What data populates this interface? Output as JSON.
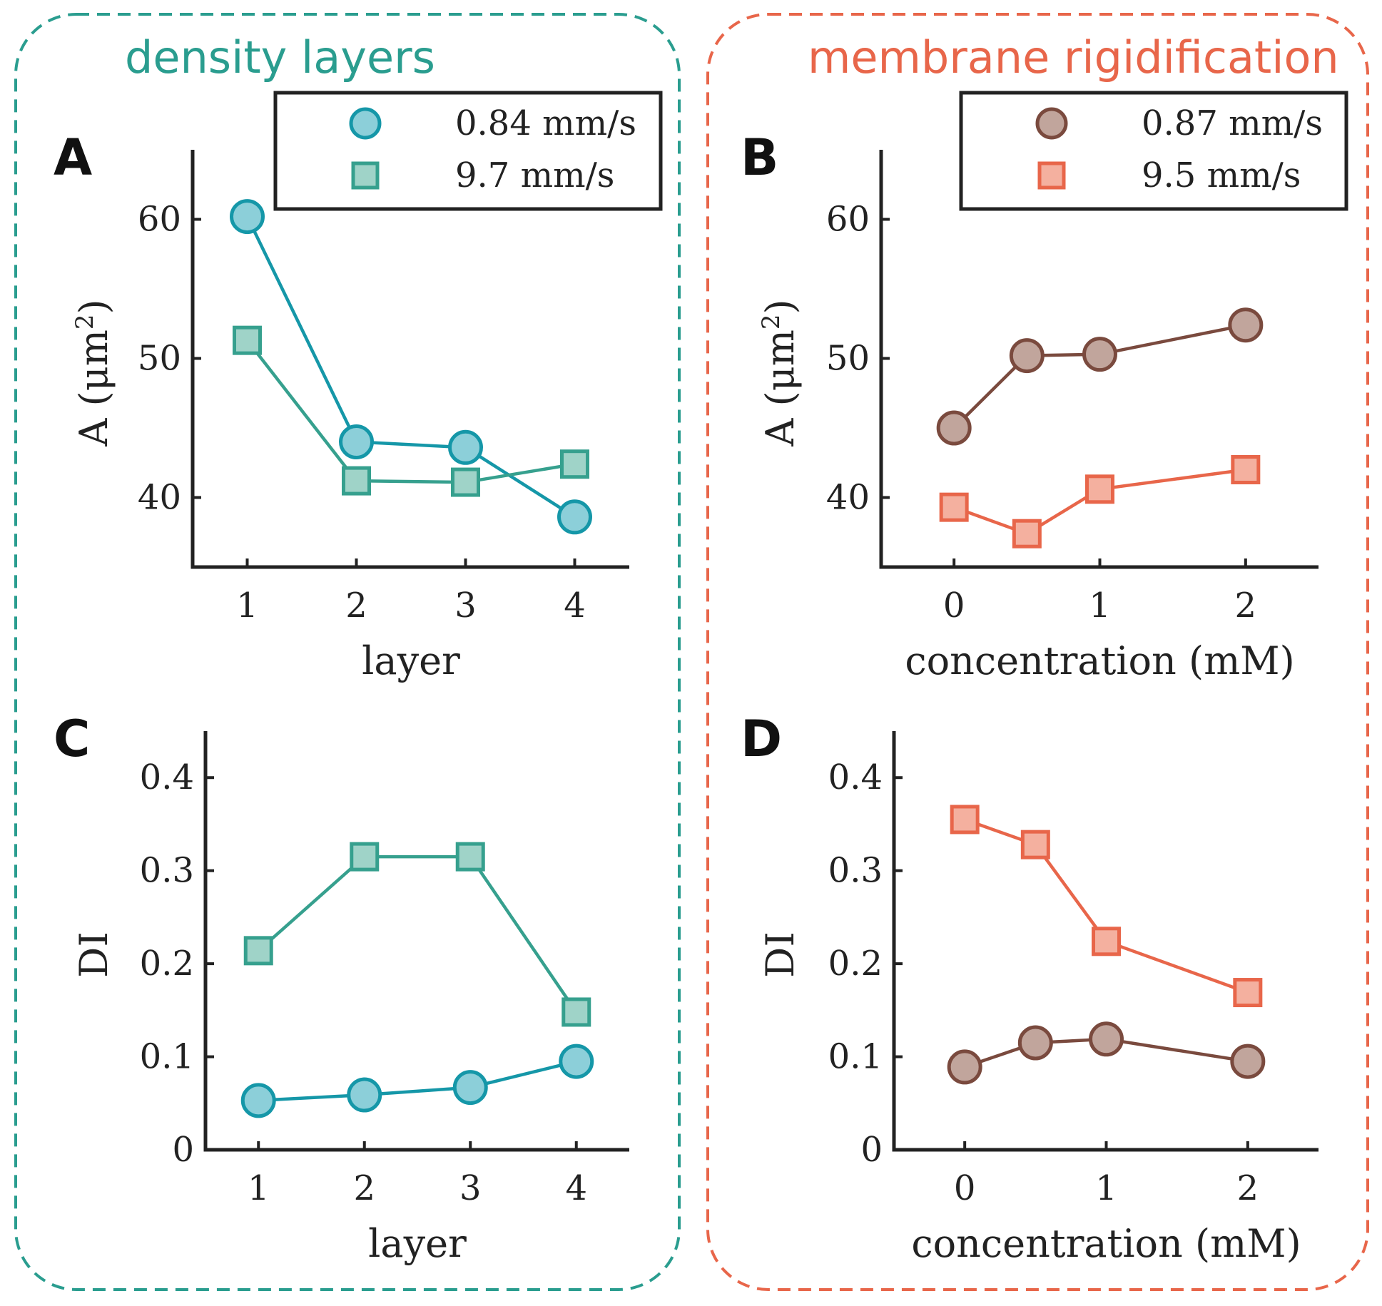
{
  "groups": [
    {
      "title": "density layers",
      "color": "#2a9d8f"
    },
    {
      "title": "membrane rigidification",
      "color": "#e8664a"
    }
  ],
  "legends": [
    {
      "entries": [
        {
          "label": "0.84 mm/s",
          "marker": "circle",
          "fill": "#8ccfd9",
          "stroke": "#1597a8"
        },
        {
          "label": "9.7 mm/s",
          "marker": "square",
          "fill": "#9fd3c8",
          "stroke": "#36a08e"
        }
      ]
    },
    {
      "entries": [
        {
          "label": "0.87 mm/s",
          "marker": "circle",
          "fill": "#c1a59c",
          "stroke": "#7a4a3e"
        },
        {
          "label": "9.5 mm/s",
          "marker": "square",
          "fill": "#f4b09f",
          "stroke": "#e8664a"
        }
      ]
    }
  ],
  "chart_data": [
    {
      "panel": "A",
      "type": "line",
      "xlabel": "layer",
      "ylabel": "A (μm²)",
      "ylabel_main": "A (μm",
      "ylabel_sup": "2",
      "ylabel_end": ")",
      "xlim": [
        0.5,
        4.5
      ],
      "ylim": [
        35,
        65
      ],
      "xticks": [
        1,
        2,
        3,
        4
      ],
      "xtick_labels": [
        "1",
        "2",
        "3",
        "4"
      ],
      "yticks": [
        40,
        50,
        60
      ],
      "ytick_labels": [
        "40",
        "50",
        "60"
      ],
      "series": [
        {
          "name": "0.84 mm/s",
          "marker": "circle",
          "x": [
            1,
            2,
            3,
            4
          ],
          "values": [
            60.2,
            44.0,
            43.6,
            38.6
          ],
          "line": "#1597a8",
          "fill": "#8ccfd9",
          "stroke": "#1597a8"
        },
        {
          "name": "9.7 mm/s",
          "marker": "square",
          "x": [
            1,
            2,
            3,
            4
          ],
          "values": [
            51.3,
            41.2,
            41.1,
            42.4
          ],
          "line": "#36a08e",
          "fill": "#9fd3c8",
          "stroke": "#36a08e"
        }
      ]
    },
    {
      "panel": "B",
      "type": "line",
      "xlabel": "concentration (mM)",
      "ylabel": "A (μm²)",
      "ylabel_main": "A (μm",
      "ylabel_sup": "2",
      "ylabel_end": ")",
      "xlim": [
        -0.5,
        2.5
      ],
      "ylim": [
        35,
        65
      ],
      "xticks": [
        0,
        1,
        2
      ],
      "xtick_labels": [
        "0",
        "1",
        "2"
      ],
      "yticks": [
        40,
        50,
        60
      ],
      "ytick_labels": [
        "40",
        "50",
        "60"
      ],
      "series": [
        {
          "name": "0.87 mm/s",
          "marker": "circle",
          "x": [
            0,
            0.5,
            1,
            2
          ],
          "values": [
            45.0,
            50.2,
            50.3,
            52.4
          ],
          "line": "#7a4a3e",
          "fill": "#c1a59c",
          "stroke": "#7a4a3e"
        },
        {
          "name": "9.5 mm/s",
          "marker": "square",
          "x": [
            0,
            0.5,
            1,
            2
          ],
          "values": [
            39.3,
            37.4,
            40.6,
            42.0
          ],
          "line": "#e8664a",
          "fill": "#f4b09f",
          "stroke": "#e8664a"
        }
      ]
    },
    {
      "panel": "C",
      "type": "line",
      "xlabel": "layer",
      "ylabel": "DI",
      "ylabel_main": "DI",
      "ylabel_sup": "",
      "ylabel_end": "",
      "xlim": [
        0.5,
        4.5
      ],
      "ylim": [
        0,
        0.45
      ],
      "xticks": [
        1,
        2,
        3,
        4
      ],
      "xtick_labels": [
        "1",
        "2",
        "3",
        "4"
      ],
      "yticks": [
        0,
        0.1,
        0.2,
        0.3,
        0.4
      ],
      "ytick_labels": [
        "0",
        "0.1",
        "0.2",
        "0.3",
        "0.4"
      ],
      "series": [
        {
          "name": "9.7 mm/s",
          "marker": "square",
          "x": [
            1,
            2,
            3,
            4
          ],
          "values": [
            0.214,
            0.315,
            0.315,
            0.148
          ],
          "line": "#36a08e",
          "fill": "#9fd3c8",
          "stroke": "#36a08e"
        },
        {
          "name": "0.84 mm/s",
          "marker": "circle",
          "x": [
            1,
            2,
            3,
            4
          ],
          "values": [
            0.053,
            0.059,
            0.067,
            0.095
          ],
          "line": "#1597a8",
          "fill": "#8ccfd9",
          "stroke": "#1597a8"
        }
      ]
    },
    {
      "panel": "D",
      "type": "line",
      "xlabel": "concentration (mM)",
      "ylabel": "DI",
      "ylabel_main": "DI",
      "ylabel_sup": "",
      "ylabel_end": "",
      "xlim": [
        -0.5,
        2.5
      ],
      "ylim": [
        0,
        0.45
      ],
      "xticks": [
        0,
        1,
        2
      ],
      "xtick_labels": [
        "0",
        "1",
        "2"
      ],
      "yticks": [
        0,
        0.1,
        0.2,
        0.3,
        0.4
      ],
      "ytick_labels": [
        "0",
        "0.1",
        "0.2",
        "0.3",
        "0.4"
      ],
      "series": [
        {
          "name": "9.5 mm/s",
          "marker": "square",
          "x": [
            0,
            0.5,
            1,
            2
          ],
          "values": [
            0.355,
            0.328,
            0.224,
            0.169
          ],
          "line": "#e8664a",
          "fill": "#f4b09f",
          "stroke": "#e8664a"
        },
        {
          "name": "0.87 mm/s",
          "marker": "circle",
          "x": [
            0,
            0.5,
            1,
            2
          ],
          "values": [
            0.089,
            0.115,
            0.119,
            0.095
          ],
          "line": "#7a4a3e",
          "fill": "#c1a59c",
          "stroke": "#7a4a3e"
        }
      ]
    }
  ]
}
